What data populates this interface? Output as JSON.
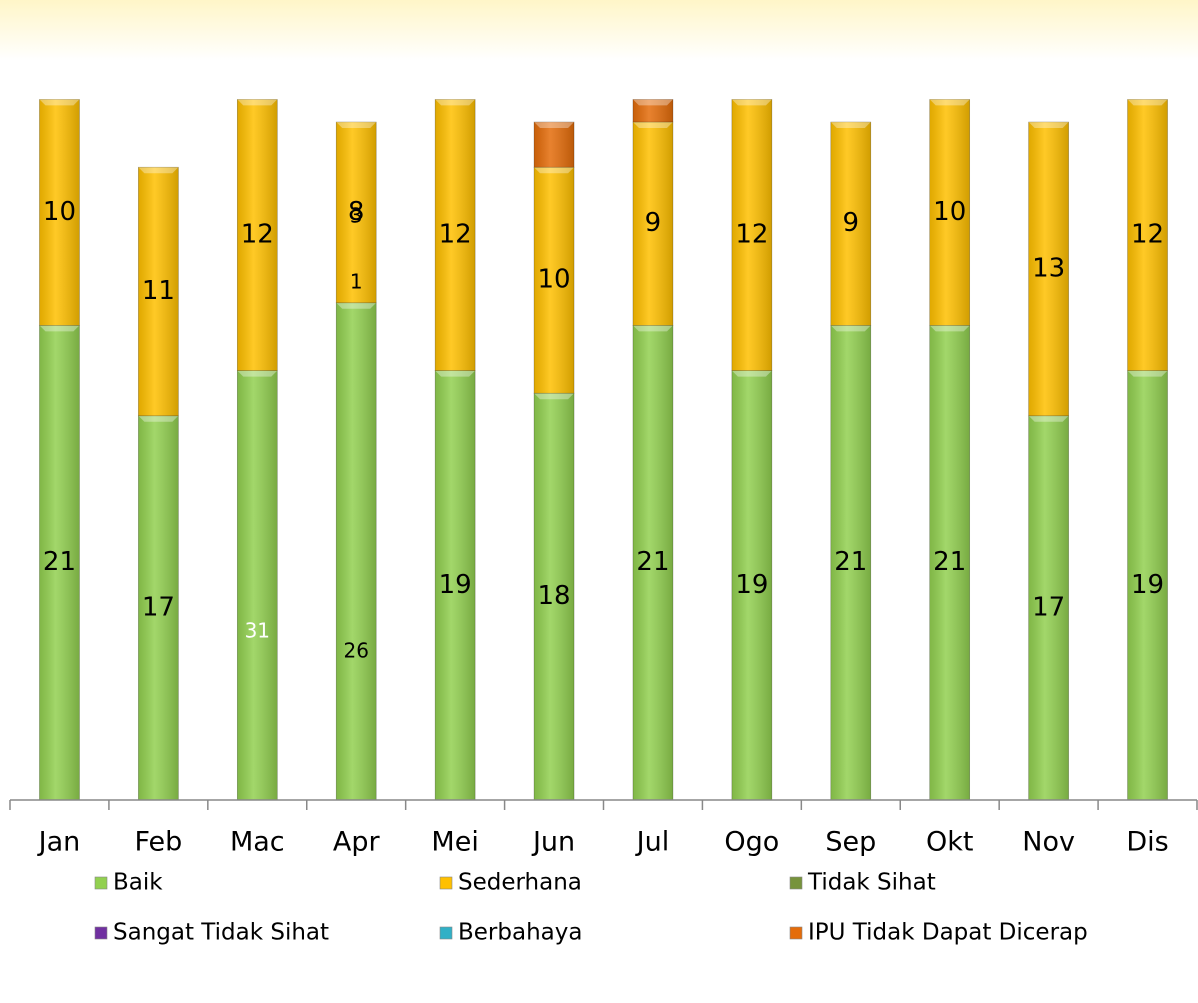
{
  "chart_data": {
    "type": "stacked_bar",
    "categories": [
      "Jan",
      "Feb",
      "Mac",
      "Apr",
      "Mei",
      "Jun",
      "Jul",
      "Ogo",
      "Sep",
      "Okt",
      "Nov",
      "Dis"
    ],
    "ylim": [
      0,
      35
    ],
    "series": [
      {
        "name": "Baik",
        "color": "#92d050",
        "values": [
          21,
          17,
          19,
          22,
          19,
          18,
          21,
          19,
          21,
          21,
          17,
          19
        ],
        "value_labels": [
          "21",
          "17",
          null,
          null,
          "19",
          "18",
          "21",
          "19",
          "21",
          "21",
          "17",
          "19"
        ]
      },
      {
        "name": "Sederhana",
        "color": "#ffc000",
        "values": [
          10,
          11,
          12,
          8,
          12,
          10,
          9,
          12,
          9,
          10,
          13,
          12
        ],
        "value_labels": [
          "10",
          "11",
          "12",
          "8",
          "12",
          "10",
          "9",
          "12",
          "9",
          "10",
          "13",
          "12"
        ]
      },
      {
        "name": "Tidak Sihat",
        "color": "#77933c",
        "values": [
          0,
          0,
          0,
          0,
          0,
          0,
          0,
          0,
          0,
          0,
          0,
          0
        ]
      },
      {
        "name": "Sangat Tidak Sihat",
        "color": "#7030a0",
        "values": [
          0,
          0,
          0,
          0,
          0,
          0,
          0,
          0,
          0,
          0,
          0,
          0
        ]
      },
      {
        "name": "Berbahaya",
        "color": "#31b0c6",
        "values": [
          0,
          0,
          0,
          0,
          0,
          0,
          0,
          0,
          0,
          0,
          0,
          0
        ]
      },
      {
        "name": "IPU Tidak Dapat Dicerap",
        "color": "#e46c0a",
        "values": [
          0,
          0,
          0,
          0,
          0,
          2,
          1,
          0,
          0,
          0,
          0,
          0
        ]
      }
    ],
    "annotations": [
      {
        "text": "31",
        "category": "Mac"
      },
      {
        "text": "26",
        "category": "Apr"
      },
      {
        "text": "1",
        "category": "Apr"
      },
      {
        "text": "3",
        "category": "Apr"
      }
    ]
  }
}
